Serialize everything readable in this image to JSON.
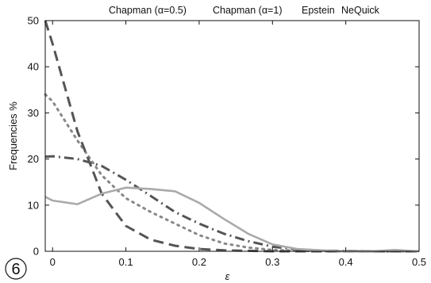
{
  "chart_data": {
    "type": "line",
    "title": "",
    "xlabel": "ε",
    "ylabel": "Frequencies %",
    "xlim": [
      -0.01,
      0.5
    ],
    "ylim": [
      0,
      50
    ],
    "xticks": [
      0,
      0.1,
      0.2,
      0.3,
      0.4,
      0.5
    ],
    "xtick_labels": [
      "0",
      "0.1",
      "0.2",
      "0.3",
      "0.4",
      "0.5"
    ],
    "yticks": [
      0,
      10,
      20,
      30,
      40,
      50
    ],
    "ytick_labels": [
      "0",
      "10",
      "20",
      "30",
      "40",
      "50"
    ],
    "grid": false,
    "legend_placement": "top-right",
    "panel_label": "6",
    "series": [
      {
        "name": "Chapman (α=0.5)",
        "style": "dashdot",
        "color": "#555555",
        "x": [
          -0.01,
          0.0,
          0.034,
          0.067,
          0.1,
          0.134,
          0.167,
          0.2,
          0.234,
          0.267,
          0.3,
          0.334,
          0.367,
          0.4,
          0.434,
          0.467,
          0.5
        ],
        "y": [
          20.5,
          20.6,
          20.0,
          18.5,
          15.5,
          12.0,
          8.5,
          6.0,
          3.8,
          2.2,
          1.0,
          0.4,
          0.15,
          0.05,
          0.0,
          0.0,
          0.0
        ]
      },
      {
        "name": "Chapman (α=1)",
        "style": "dotted",
        "color": "#888888",
        "x": [
          -0.01,
          0.0,
          0.034,
          0.067,
          0.1,
          0.134,
          0.167,
          0.2,
          0.234,
          0.267,
          0.3,
          0.334,
          0.367,
          0.4,
          0.434,
          0.467,
          0.5
        ],
        "y": [
          34.0,
          32.5,
          24.0,
          16.5,
          11.5,
          8.5,
          6.0,
          3.5,
          1.7,
          0.8,
          0.3,
          0.1,
          0.0,
          0.0,
          0.0,
          0.0,
          0.0
        ]
      },
      {
        "name": "Epstein",
        "style": "dashed",
        "color": "#555555",
        "x": [
          -0.01,
          0.0,
          0.034,
          0.067,
          0.1,
          0.134,
          0.167,
          0.2,
          0.234,
          0.267,
          0.3,
          0.334,
          0.367,
          0.4,
          0.434,
          0.467,
          0.5
        ],
        "y": [
          50.0,
          45.0,
          26.0,
          12.5,
          5.5,
          2.5,
          1.2,
          0.5,
          0.2,
          0.1,
          0.0,
          0.0,
          0.0,
          0.0,
          0.0,
          0.0,
          0.0
        ]
      },
      {
        "name": "NeQuick",
        "style": "solid",
        "color": "#aaaaaa",
        "x": [
          -0.01,
          0.0,
          0.034,
          0.067,
          0.1,
          0.134,
          0.167,
          0.2,
          0.234,
          0.267,
          0.3,
          0.334,
          0.367,
          0.4,
          0.434,
          0.467,
          0.5
        ],
        "y": [
          11.8,
          11.0,
          10.2,
          12.5,
          13.8,
          13.5,
          13.0,
          10.5,
          7.0,
          3.8,
          1.5,
          0.5,
          0.2,
          0.0,
          0.0,
          0.3,
          0.0
        ]
      }
    ]
  }
}
